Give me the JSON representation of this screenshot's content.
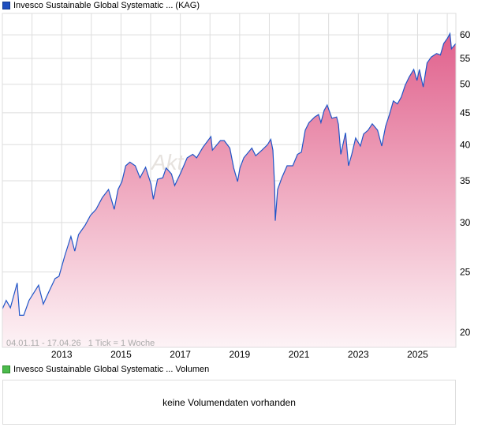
{
  "legend": {
    "title": "Invesco Sustainable Global Systematic ... (KAG)",
    "color": "#1f4fbf"
  },
  "volume_legend": {
    "title": "Invesco Sustainable Global Systematic ... Volumen",
    "color": "#4cbb4c"
  },
  "volume_message": "keine Volumendaten vorhanden",
  "range_info": "04.01.11 - 17.04.26   1 Tick = 1 Woche",
  "watermark": "Akt",
  "chart_data": {
    "type": "area",
    "title": "Invesco Sustainable Global Systematic ... (KAG)",
    "xlabel": "",
    "ylabel": "",
    "yscale": "log",
    "ylim": [
      19,
      63
    ],
    "xlim": [
      2011.0,
      2026.29
    ],
    "yticks": [
      20,
      25,
      30,
      35,
      40,
      45,
      50,
      55,
      60
    ],
    "xticks": [
      2013,
      2015,
      2017,
      2019,
      2021,
      2023,
      2025
    ],
    "grid": true,
    "line_color": "#1f55c8",
    "x": [
      2011.0,
      2011.13,
      2011.27,
      2011.5,
      2011.58,
      2011.72,
      2011.9,
      2012.22,
      2012.38,
      2012.56,
      2012.78,
      2012.91,
      2013.1,
      2013.31,
      2013.44,
      2013.57,
      2013.79,
      2013.97,
      2014.16,
      2014.37,
      2014.58,
      2014.77,
      2014.9,
      2015.03,
      2015.16,
      2015.3,
      2015.48,
      2015.64,
      2015.83,
      2016.01,
      2016.09,
      2016.23,
      2016.41,
      2016.52,
      2016.7,
      2016.81,
      2017.02,
      2017.23,
      2017.42,
      2017.55,
      2017.76,
      2018.03,
      2018.08,
      2018.35,
      2018.48,
      2018.67,
      2018.8,
      2018.93,
      2019.01,
      2019.14,
      2019.41,
      2019.54,
      2019.75,
      2019.94,
      2020.05,
      2020.12,
      2020.18,
      2020.2,
      2020.28,
      2020.42,
      2020.6,
      2020.79,
      2020.95,
      2021.08,
      2021.21,
      2021.34,
      2021.53,
      2021.66,
      2021.74,
      2021.85,
      2021.95,
      2022.11,
      2022.27,
      2022.33,
      2022.41,
      2022.57,
      2022.67,
      2022.78,
      2022.91,
      2023.07,
      2023.18,
      2023.33,
      2023.47,
      2023.65,
      2023.79,
      2023.92,
      2024.05,
      2024.18,
      2024.32,
      2024.45,
      2024.58,
      2024.71,
      2024.87,
      2024.98,
      2025.06,
      2025.19,
      2025.32,
      2025.46,
      2025.64,
      2025.77,
      2025.88,
      2026.01,
      2026.09,
      2026.14,
      2026.29
    ],
    "values": [
      21.8,
      22.5,
      21.9,
      24.0,
      21.3,
      21.3,
      22.5,
      23.8,
      22.2,
      23.2,
      24.4,
      24.6,
      26.5,
      28.5,
      27.0,
      28.7,
      29.7,
      30.8,
      31.5,
      32.9,
      33.9,
      31.5,
      33.9,
      34.9,
      37.0,
      37.5,
      37.0,
      35.4,
      36.8,
      34.6,
      32.7,
      35.2,
      35.4,
      36.7,
      35.9,
      34.4,
      36.1,
      38.1,
      38.6,
      38.1,
      39.6,
      41.2,
      39.2,
      40.6,
      40.6,
      39.5,
      36.7,
      34.9,
      36.7,
      38.1,
      39.5,
      38.4,
      39.2,
      40.0,
      40.8,
      39.2,
      34.3,
      30.2,
      33.9,
      35.4,
      37.0,
      37.0,
      38.6,
      38.9,
      42.2,
      43.4,
      44.3,
      44.7,
      43.4,
      45.4,
      46.3,
      44.1,
      44.3,
      43.1,
      38.6,
      41.8,
      37.0,
      38.6,
      41.0,
      39.8,
      41.6,
      42.2,
      43.2,
      42.2,
      39.8,
      42.8,
      44.7,
      47.0,
      46.5,
      47.7,
      49.8,
      51.3,
      52.8,
      50.7,
      52.8,
      49.5,
      54.1,
      55.3,
      56.0,
      55.7,
      58.1,
      59.3,
      60.3,
      57.0,
      58.1
    ]
  }
}
